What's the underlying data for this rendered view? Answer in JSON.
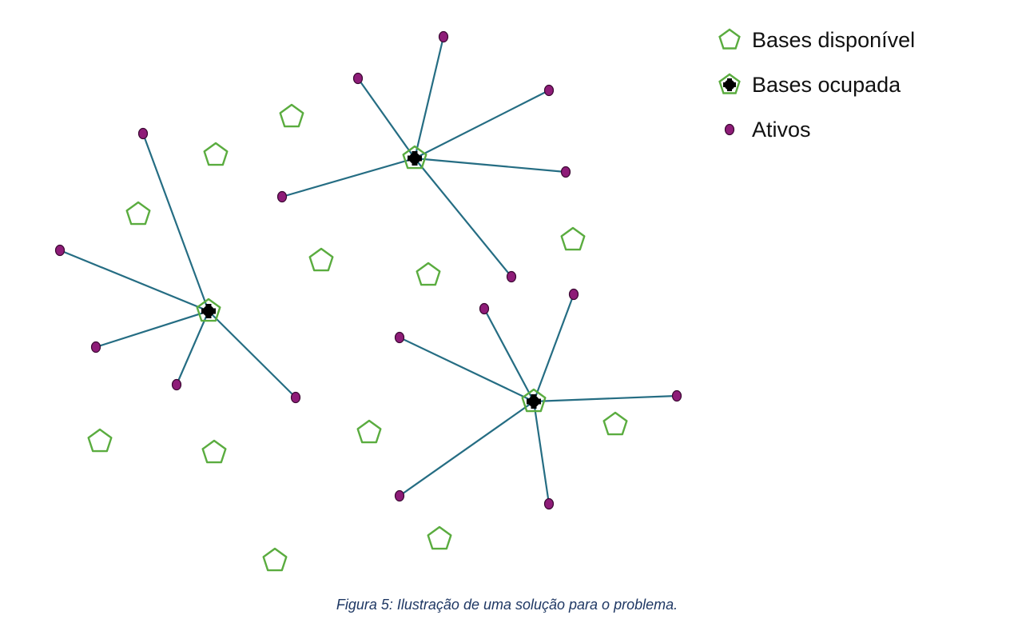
{
  "legend": {
    "available_label": "Bases disponível",
    "occupied_label": "Bases ocupada",
    "assets_label": "Ativos"
  },
  "caption": "Figura 5: Ilustração de uma solução para o problema.",
  "colors": {
    "base_outline": "#5aac3f",
    "occupied_marker": "#000000",
    "asset_fill": "#8e1c78",
    "asset_outline": "#3b0832",
    "connection_line": "#256d83"
  },
  "icons": {
    "available": "pentagon-outline-icon",
    "occupied": "pentagon-with-black-marker-icon",
    "asset": "purple-dot-icon"
  }
}
